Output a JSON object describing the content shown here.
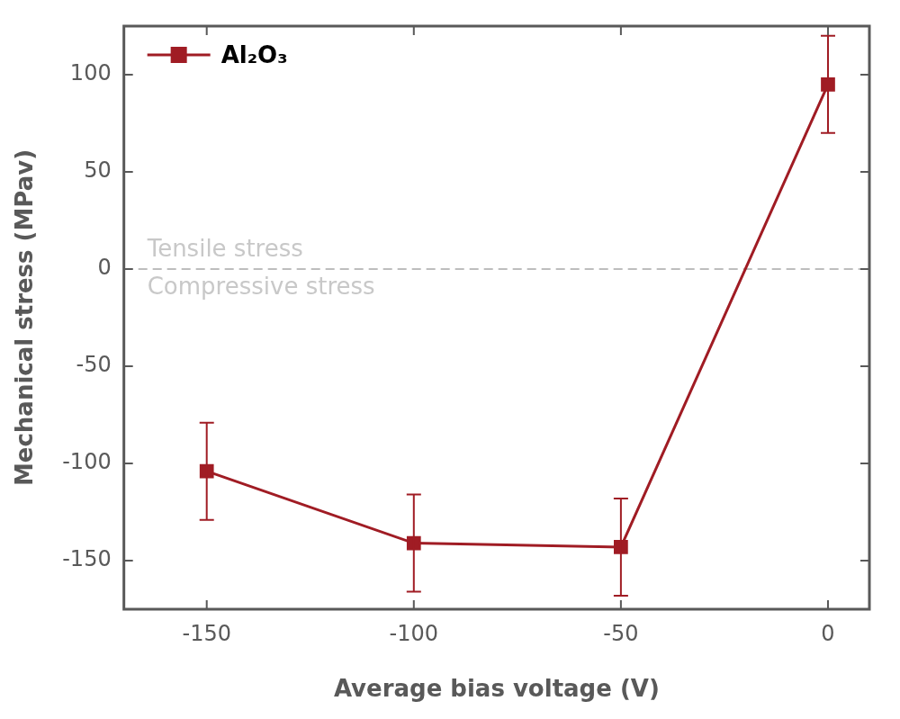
{
  "chart_data": {
    "type": "line",
    "x_label": "Average bias voltage (V)",
    "y_label": "Mechanical stress (MPav)",
    "annotations": [
      "Tensile stress",
      "Compressive stress"
    ],
    "reference_y": 0,
    "x": [
      -150,
      -100,
      -50,
      0
    ],
    "series": [
      {
        "name": "Al₂O₃",
        "color": "#a01c24",
        "marker": "square",
        "line_style": "solid",
        "values": [
          -104,
          -141,
          -143,
          95
        ],
        "errors": [
          25,
          25,
          25,
          25
        ]
      }
    ],
    "xlim": [
      -170,
      10
    ],
    "xticks": [
      -150,
      -100,
      -50,
      0
    ],
    "ylim": [
      -175,
      125
    ],
    "yticks": [
      -150,
      -100,
      -50,
      0,
      50,
      100
    ],
    "grid": false,
    "legend": "upper left"
  }
}
